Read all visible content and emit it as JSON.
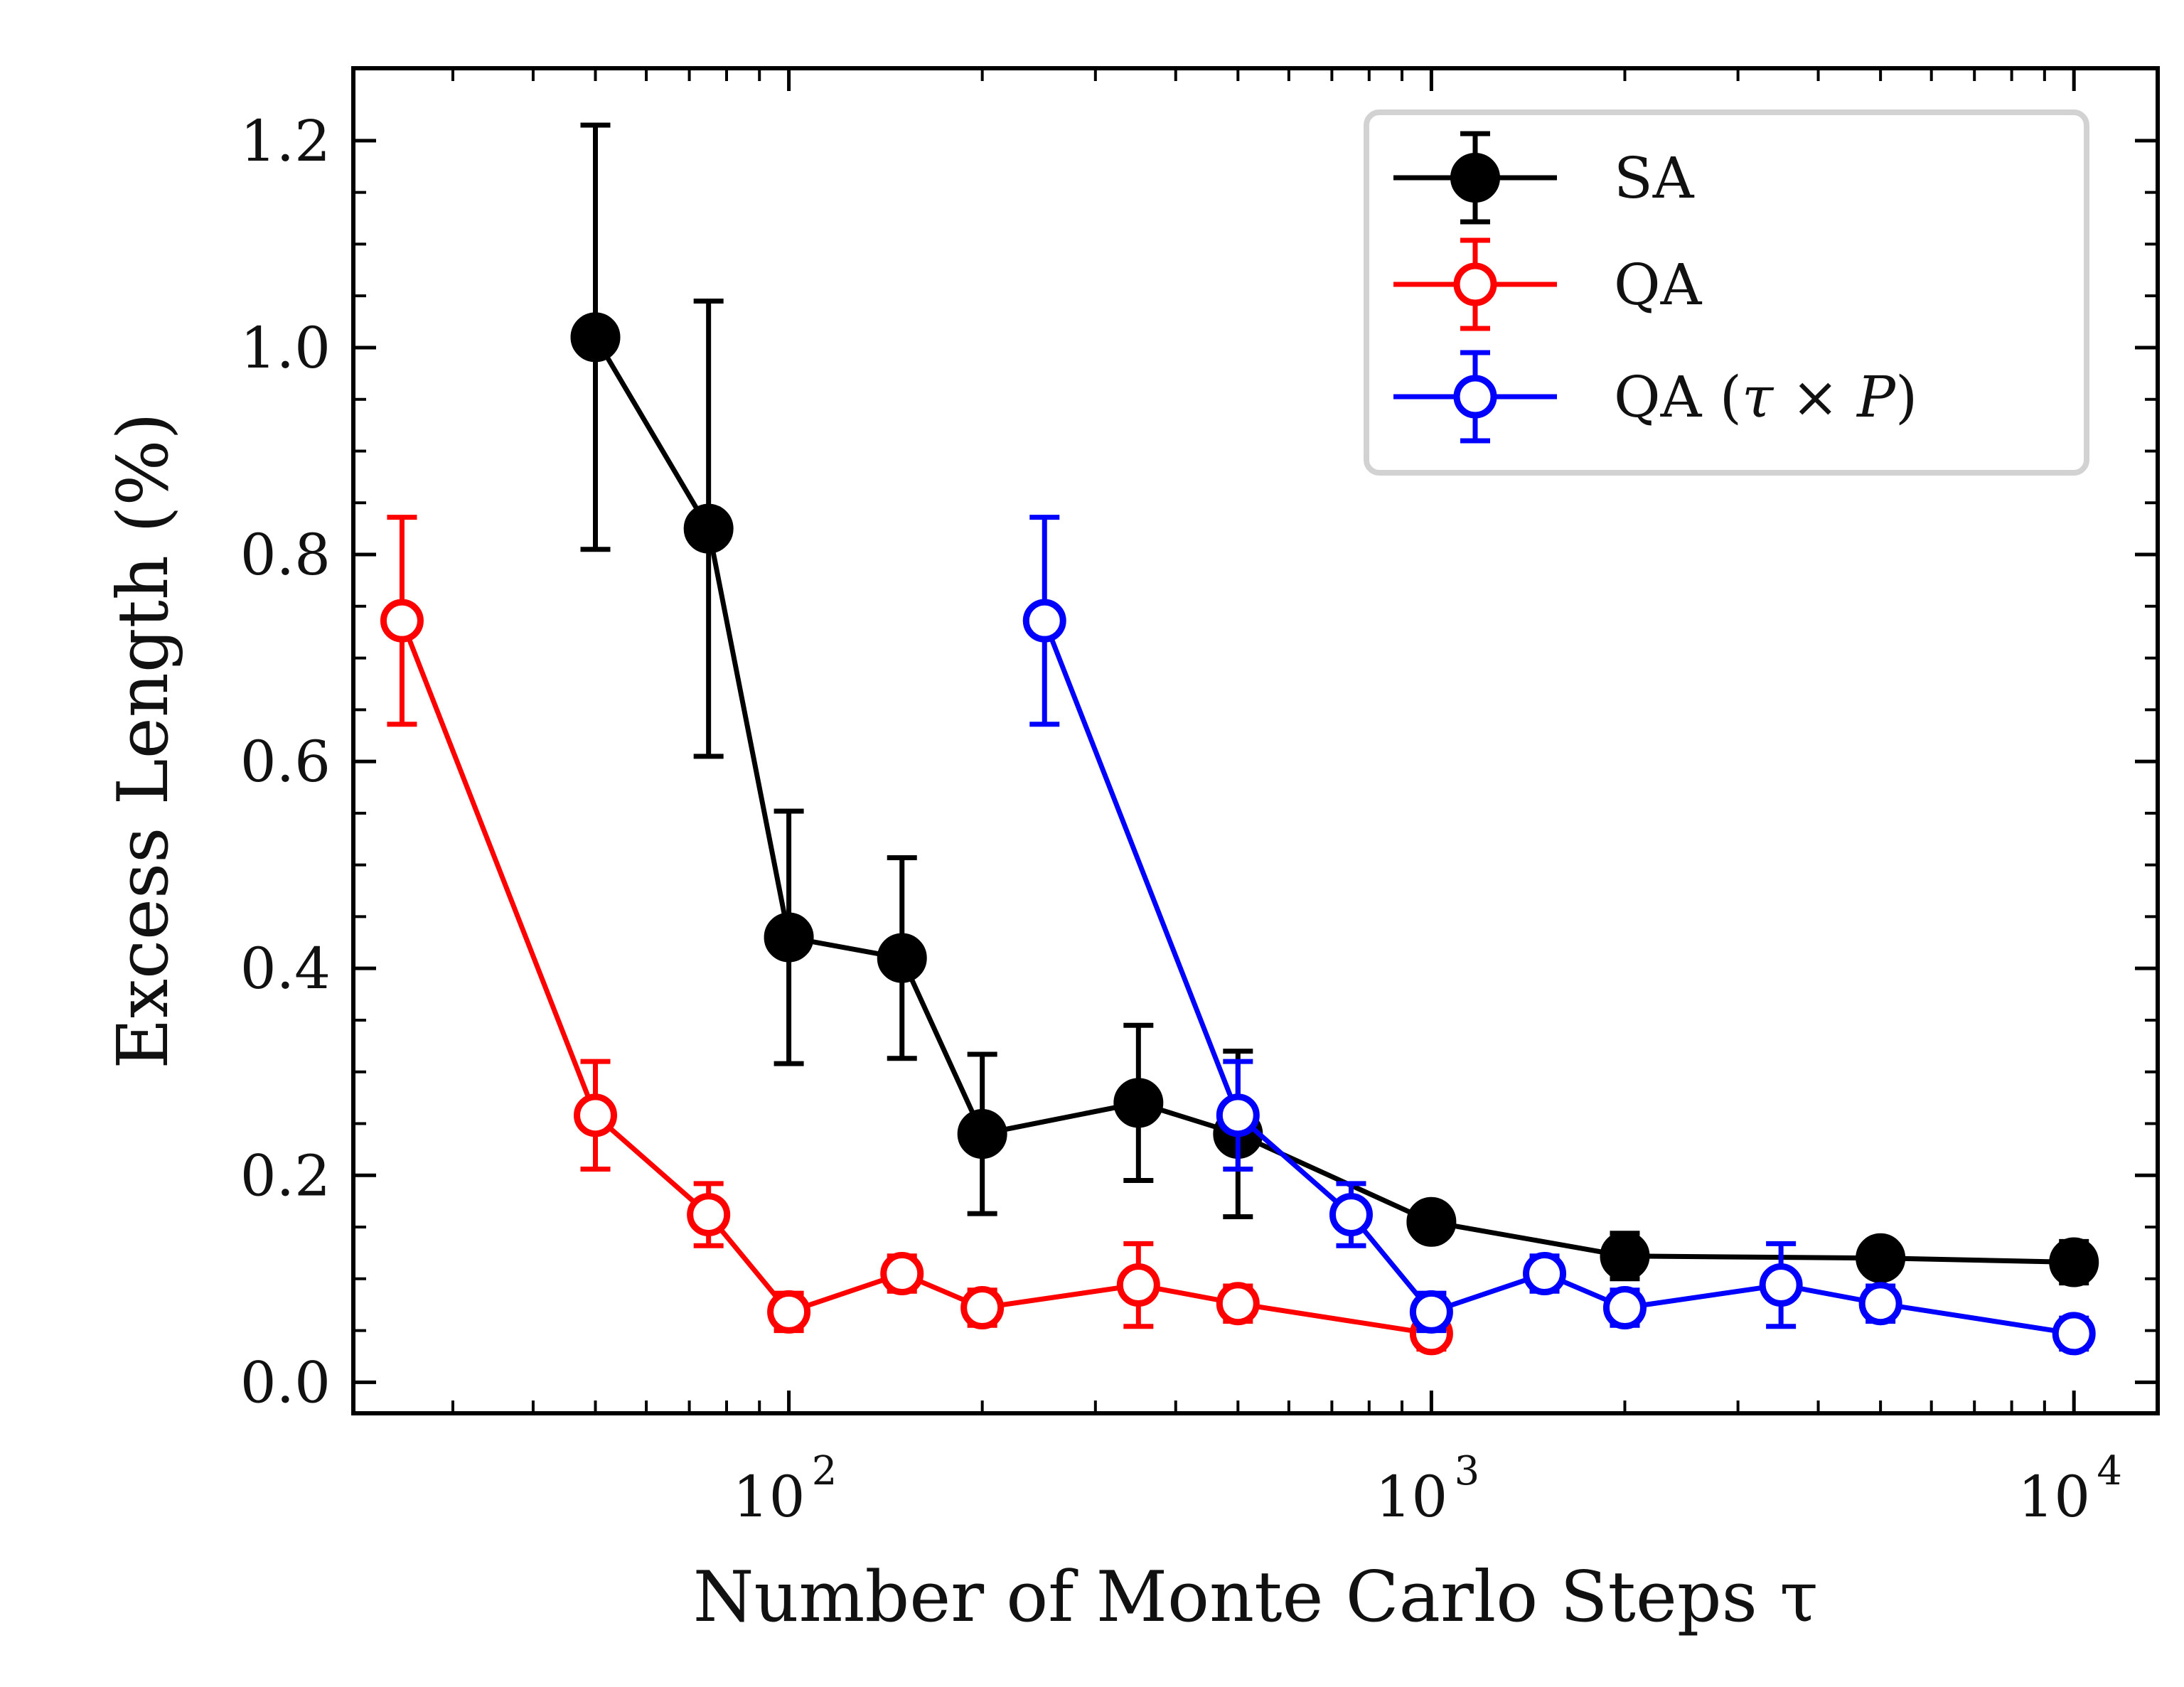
{
  "chart_data": {
    "type": "line",
    "title": "",
    "xlabel": "Number of Monte Carlo Steps τ",
    "ylabel": "Excess Length (%)",
    "xscale": "log",
    "xlim": [
      21,
      13500
    ],
    "ylim": [
      -0.03,
      1.27
    ],
    "xticks": [
      {
        "value": 100,
        "base": "10",
        "exp": "2"
      },
      {
        "value": 1000,
        "base": "10",
        "exp": "3"
      },
      {
        "value": 10000,
        "base": "10",
        "exp": "4"
      }
    ],
    "yticks": [
      {
        "value": 0.0,
        "label": "0.0"
      },
      {
        "value": 0.2,
        "label": "0.2"
      },
      {
        "value": 0.4,
        "label": "0.4"
      },
      {
        "value": 0.6,
        "label": "0.6"
      },
      {
        "value": 0.8,
        "label": "0.8"
      },
      {
        "value": 1.0,
        "label": "1.0"
      },
      {
        "value": 1.2,
        "label": "1.2"
      }
    ],
    "legend_position": "top-right",
    "series": [
      {
        "name": "SA",
        "label_parts": [
          "SA"
        ],
        "color": "#000000",
        "marker": "filled-circle",
        "points": [
          {
            "x": 50,
            "y": 1.01,
            "err": 0.205
          },
          {
            "x": 75,
            "y": 0.825,
            "err": 0.22
          },
          {
            "x": 100,
            "y": 0.43,
            "err": 0.122
          },
          {
            "x": 150,
            "y": 0.41,
            "err": 0.097
          },
          {
            "x": 200,
            "y": 0.24,
            "err": 0.077
          },
          {
            "x": 350,
            "y": 0.27,
            "err": 0.075
          },
          {
            "x": 500,
            "y": 0.24,
            "err": 0.08
          },
          {
            "x": 1000,
            "y": 0.155,
            "err": 0.017
          },
          {
            "x": 2000,
            "y": 0.122,
            "err": 0.022
          },
          {
            "x": 5000,
            "y": 0.12,
            "err": 0.017
          },
          {
            "x": 10000,
            "y": 0.116,
            "err": 0.02
          }
        ]
      },
      {
        "name": "QA",
        "label_parts": [
          "QA"
        ],
        "color": "#ff0000",
        "marker": "open-circle",
        "points": [
          {
            "x": 25,
            "y": 0.736,
            "err": 0.1
          },
          {
            "x": 50,
            "y": 0.258,
            "err": 0.052
          },
          {
            "x": 75,
            "y": 0.162,
            "err": 0.03
          },
          {
            "x": 100,
            "y": 0.068,
            "err": 0.018
          },
          {
            "x": 150,
            "y": 0.105,
            "err": 0.017
          },
          {
            "x": 200,
            "y": 0.072,
            "err": 0.017
          },
          {
            "x": 350,
            "y": 0.094,
            "err": 0.04
          },
          {
            "x": 500,
            "y": 0.076,
            "err": 0.017
          },
          {
            "x": 1000,
            "y": 0.047,
            "err": 0.015
          }
        ]
      },
      {
        "name": "QA (τ × P)",
        "label_parts": [
          "QA (",
          "τ",
          " × ",
          "P",
          ")"
        ],
        "color": "#0000ff",
        "marker": "open-circle",
        "points": [
          {
            "x": 250,
            "y": 0.736,
            "err": 0.1
          },
          {
            "x": 500,
            "y": 0.258,
            "err": 0.052
          },
          {
            "x": 750,
            "y": 0.162,
            "err": 0.03
          },
          {
            "x": 1000,
            "y": 0.068,
            "err": 0.018
          },
          {
            "x": 1500,
            "y": 0.105,
            "err": 0.017
          },
          {
            "x": 2000,
            "y": 0.072,
            "err": 0.017
          },
          {
            "x": 3500,
            "y": 0.094,
            "err": 0.04
          },
          {
            "x": 5000,
            "y": 0.076,
            "err": 0.017
          },
          {
            "x": 10000,
            "y": 0.047,
            "err": 0.015
          }
        ]
      }
    ]
  }
}
